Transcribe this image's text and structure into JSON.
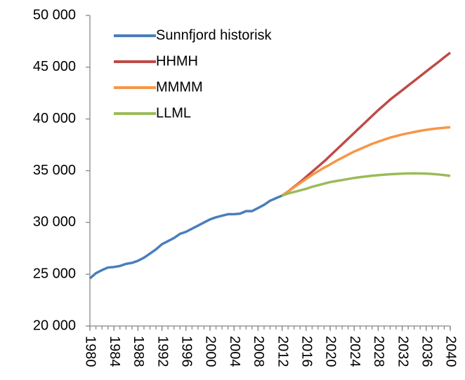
{
  "chart_data": {
    "type": "line",
    "x": [
      1980,
      1981,
      1982,
      1983,
      1984,
      1985,
      1986,
      1987,
      1988,
      1989,
      1990,
      1991,
      1992,
      1993,
      1994,
      1995,
      1996,
      1997,
      1998,
      1999,
      2000,
      2001,
      2002,
      2003,
      2004,
      2005,
      2006,
      2007,
      2008,
      2009,
      2010,
      2011,
      2012,
      2013,
      2014,
      2015,
      2016,
      2017,
      2018,
      2019,
      2020,
      2021,
      2022,
      2023,
      2024,
      2025,
      2026,
      2027,
      2028,
      2029,
      2030,
      2031,
      2032,
      2033,
      2034,
      2035,
      2036,
      2037,
      2038,
      2039,
      2040
    ],
    "series": [
      {
        "name": "Sunnfjord historisk",
        "color": "#4a7ebb",
        "values": [
          24600,
          25100,
          25400,
          25650,
          25700,
          25800,
          26000,
          26100,
          26300,
          26600,
          27000,
          27400,
          27900,
          28200,
          28500,
          28900,
          29100,
          29400,
          29700,
          30000,
          30300,
          30500,
          30650,
          30800,
          30800,
          30850,
          31100,
          31100,
          31400,
          31700,
          32100,
          32350,
          32600,
          null,
          null,
          null,
          null,
          null,
          null,
          null,
          null,
          null,
          null,
          null,
          null,
          null,
          null,
          null,
          null,
          null,
          null,
          null,
          null,
          null,
          null,
          null,
          null,
          null,
          null,
          null,
          null
        ]
      },
      {
        "name": "HHMH",
        "color": "#be4b48",
        "values": [
          null,
          null,
          null,
          null,
          null,
          null,
          null,
          null,
          null,
          null,
          null,
          null,
          null,
          null,
          null,
          null,
          null,
          null,
          null,
          null,
          null,
          null,
          null,
          null,
          null,
          null,
          null,
          null,
          null,
          null,
          null,
          null,
          32600,
          33000,
          33450,
          33900,
          34400,
          34900,
          35400,
          35900,
          36450,
          37000,
          37550,
          38100,
          38650,
          39200,
          39750,
          40300,
          40850,
          41350,
          41870,
          42320,
          42770,
          43230,
          43680,
          44130,
          44590,
          45040,
          45490,
          45950,
          46400
        ]
      },
      {
        "name": "MMMM",
        "color": "#f79646",
        "values": [
          null,
          null,
          null,
          null,
          null,
          null,
          null,
          null,
          null,
          null,
          null,
          null,
          null,
          null,
          null,
          null,
          null,
          null,
          null,
          null,
          null,
          null,
          null,
          null,
          null,
          null,
          null,
          null,
          null,
          null,
          null,
          null,
          32600,
          33000,
          33400,
          33800,
          34200,
          34600,
          34950,
          35300,
          35600,
          35950,
          36250,
          36550,
          36850,
          37100,
          37350,
          37600,
          37800,
          38000,
          38200,
          38350,
          38500,
          38620,
          38740,
          38850,
          38950,
          39030,
          39100,
          39150,
          39200
        ]
      },
      {
        "name": "LLML",
        "color": "#9bbb59",
        "values": [
          null,
          null,
          null,
          null,
          null,
          null,
          null,
          null,
          null,
          null,
          null,
          null,
          null,
          null,
          null,
          null,
          null,
          null,
          null,
          null,
          null,
          null,
          null,
          null,
          null,
          null,
          null,
          null,
          null,
          null,
          null,
          null,
          32600,
          32800,
          32950,
          33100,
          33250,
          33450,
          33600,
          33750,
          33900,
          34000,
          34100,
          34200,
          34300,
          34380,
          34450,
          34520,
          34570,
          34620,
          34660,
          34690,
          34720,
          34740,
          34750,
          34740,
          34720,
          34690,
          34640,
          34580,
          34500
        ]
      }
    ],
    "xlim": [
      1980,
      2040
    ],
    "xticks": [
      1980,
      1984,
      1988,
      1992,
      1996,
      2000,
      2004,
      2008,
      2012,
      2016,
      2020,
      2024,
      2028,
      2032,
      2036,
      2040
    ],
    "ylim": [
      20000,
      50000
    ],
    "yticks": [
      {
        "value": 20000,
        "label": "20 000"
      },
      {
        "value": 25000,
        "label": "25 000"
      },
      {
        "value": 30000,
        "label": "30 000"
      },
      {
        "value": 35000,
        "label": "35 000"
      },
      {
        "value": 40000,
        "label": "40 000"
      },
      {
        "value": 45000,
        "label": "45 000"
      },
      {
        "value": 50000,
        "label": "50 000"
      }
    ],
    "legend": "upper left"
  }
}
